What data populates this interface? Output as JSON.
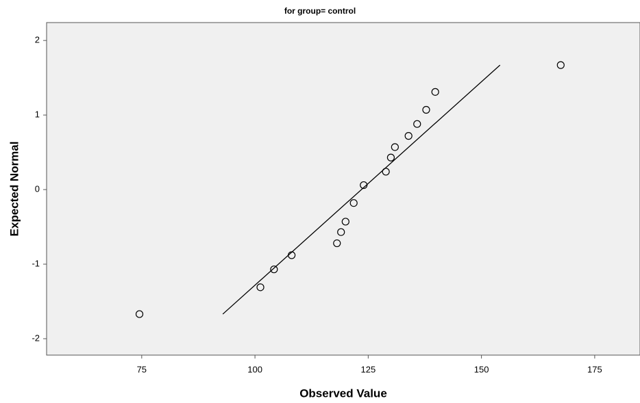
{
  "chart_data": {
    "type": "scatter",
    "title": "for group= control",
    "x_label": "Observed Value",
    "y_label": "Expected Normal",
    "x": [
      74.5,
      101.2,
      104.2,
      108.1,
      118.1,
      119.0,
      120.0,
      121.8,
      124.0,
      128.9,
      130.0,
      130.9,
      133.9,
      135.8,
      137.8,
      139.8,
      167.5
    ],
    "values": [
      -1.67,
      -1.31,
      -1.07,
      -0.88,
      -0.72,
      -0.57,
      -0.43,
      -0.18,
      0.06,
      0.24,
      0.43,
      0.57,
      0.72,
      0.88,
      1.07,
      1.31,
      1.67
    ],
    "color": "#000000",
    "reference_line": {
      "x": [
        92.9,
        154.1
      ],
      "y": [
        -1.67,
        1.67
      ],
      "color": "#000000"
    },
    "xlim": [
      54,
      185
    ],
    "xticks": [
      75,
      100,
      125,
      150,
      175
    ],
    "ylim": [
      -2.22,
      2.24
    ],
    "yticks": [
      -2,
      -1,
      0,
      1,
      2
    ]
  }
}
